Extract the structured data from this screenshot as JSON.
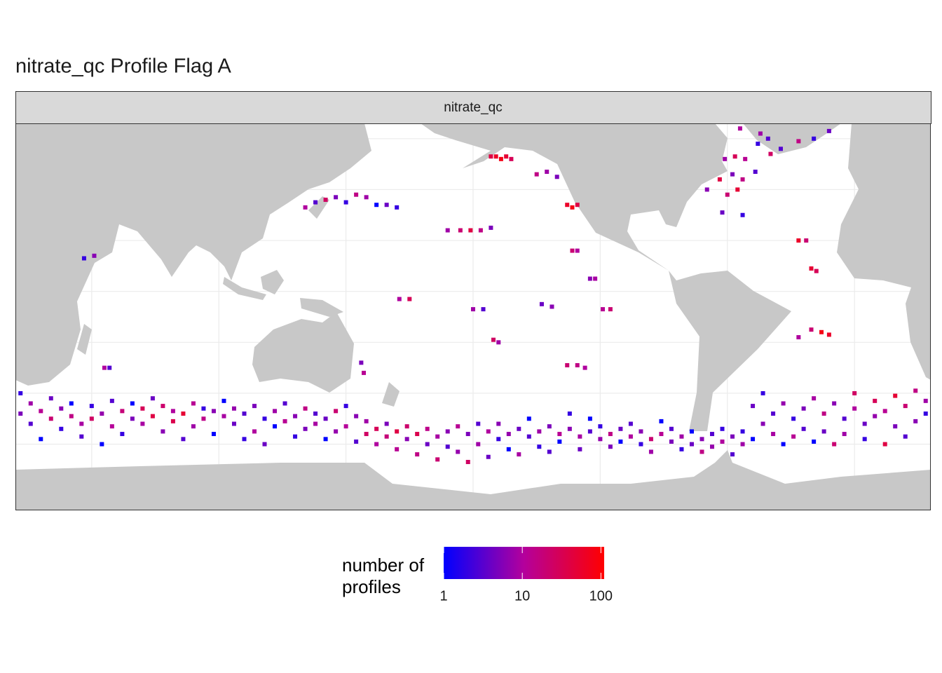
{
  "chart_data": {
    "type": "map",
    "title": "nitrate_qc Profile Flag A",
    "strip": "nitrate_qc",
    "legend_title": "number of profiles",
    "xlim": [
      20,
      380
    ],
    "ylim": [
      -86,
      66
    ],
    "xgrid": [
      50,
      100,
      150,
      200,
      250,
      300,
      350
    ],
    "ygrid": [
      -80,
      -60,
      -40,
      -20,
      0,
      20,
      40,
      60
    ],
    "colorlim": [
      1,
      110
    ],
    "log": true,
    "colorticks": [
      1,
      10,
      100
    ],
    "colors": [
      "#0000ff",
      "#b4009c",
      "#ff0000"
    ],
    "x": [
      22,
      22,
      26,
      26,
      30,
      30,
      34,
      34,
      38,
      38,
      42,
      42,
      46,
      46,
      50,
      50,
      54,
      54,
      58,
      58,
      62,
      62,
      66,
      66,
      70,
      70,
      74,
      74,
      78,
      78,
      82,
      82,
      86,
      86,
      90,
      90,
      94,
      94,
      98,
      98,
      102,
      102,
      106,
      106,
      110,
      110,
      114,
      114,
      118,
      118,
      122,
      122,
      126,
      126,
      130,
      130,
      134,
      134,
      138,
      138,
      142,
      142,
      146,
      146,
      150,
      150,
      154,
      154,
      158,
      158,
      162,
      162,
      166,
      166,
      170,
      170,
      174,
      174,
      178,
      178,
      182,
      182,
      186,
      186,
      190,
      190,
      194,
      194,
      198,
      198,
      202,
      202,
      206,
      206,
      210,
      210,
      214,
      214,
      218,
      218,
      222,
      222,
      226,
      226,
      230,
      230,
      234,
      234,
      238,
      238,
      242,
      242,
      246,
      246,
      250,
      250,
      254,
      254,
      258,
      258,
      262,
      262,
      266,
      266,
      270,
      270,
      274,
      274,
      278,
      278,
      282,
      282,
      286,
      286,
      290,
      290,
      294,
      294,
      298,
      298,
      302,
      302,
      306,
      306,
      310,
      310,
      314,
      314,
      318,
      318,
      322,
      322,
      326,
      326,
      330,
      330,
      334,
      334,
      338,
      338,
      342,
      342,
      346,
      346,
      350,
      350,
      354,
      354,
      358,
      358,
      362,
      362,
      366,
      366,
      370,
      370,
      374,
      374,
      378,
      378,
      207,
      209,
      211,
      213,
      215,
      225,
      229,
      233,
      237,
      239,
      241,
      134,
      138,
      142,
      146,
      150,
      154,
      158,
      162,
      166,
      170,
      190,
      195,
      199,
      203,
      207,
      239,
      241,
      246,
      248,
      171,
      175,
      208,
      210,
      237,
      241,
      244,
      227,
      231,
      251,
      254,
      200,
      204,
      312,
      299,
      303,
      307,
      297,
      302,
      306,
      311,
      292,
      300,
      304,
      298,
      306,
      317,
      321,
      328,
      334,
      313,
      333,
      335,
      328,
      331,
      316,
      305,
      340,
      47,
      51,
      337,
      340,
      333,
      328,
      55,
      57,
      156,
      157
    ],
    "y": [
      -40,
      -48,
      -44,
      -52,
      -47,
      -58,
      -42,
      -50,
      -46,
      -54,
      -49,
      -44,
      -52,
      -57,
      -45,
      -50,
      -48,
      -60,
      -43,
      -53,
      -47,
      -56,
      -50,
      -44,
      -46,
      -52,
      -49,
      -42,
      -45,
      -55,
      -51,
      -47,
      -48,
      -58,
      -44,
      -53,
      -50,
      -46,
      -47,
      -56,
      -49,
      -43,
      -52,
      -46,
      -48,
      -58,
      -45,
      -55,
      -50,
      -60,
      -47,
      -53,
      -44,
      -51,
      -49,
      -57,
      -46,
      -54,
      -52,
      -48,
      -50,
      -58,
      -47,
      -55,
      -53,
      -45,
      -49,
      -59,
      -56,
      -51,
      -54,
      -60,
      -57,
      -52,
      -55,
      -62,
      -53,
      -58,
      -56,
      -64,
      -54,
      -60,
      -57,
      -66,
      -55,
      -61,
      -53,
      -63,
      -56,
      -67,
      -52,
      -60,
      -55,
      -65,
      -58,
      -52,
      -56,
      -62,
      -54,
      -64,
      -57,
      -50,
      -55,
      -61,
      -53,
      -63,
      -56,
      -59,
      -54,
      -48,
      -57,
      -62,
      -55,
      -50,
      -58,
      -53,
      -56,
      -61,
      -54,
      -59,
      -57,
      -52,
      -55,
      -60,
      -58,
      -63,
      -56,
      -51,
      -59,
      -54,
      -57,
      -62,
      -60,
      -55,
      -58,
      -63,
      -56,
      -61,
      -59,
      -54,
      -57,
      -64,
      -55,
      -60,
      -58,
      -45,
      -52,
      -40,
      -48,
      -56,
      -44,
      -60,
      -50,
      -57,
      -46,
      -54,
      -42,
      -59,
      -48,
      -55,
      -44,
      -60,
      -50,
      -56,
      -46,
      -40,
      -52,
      -58,
      -43,
      -49,
      -47,
      -60,
      -41,
      -53,
      -45,
      -57,
      -39,
      -51,
      -43,
      -48,
      53,
      53,
      52,
      53,
      52,
      46,
      47,
      45,
      34,
      33,
      34,
      33,
      35,
      36,
      37,
      35,
      38,
      37,
      34,
      34,
      33,
      24,
      24,
      24,
      24,
      25,
      16,
      16,
      5,
      5,
      -3,
      -3,
      -19,
      -20,
      -29,
      -29,
      -30,
      -5,
      -6,
      -7,
      -7,
      -7,
      -7,
      58,
      52,
      53,
      52,
      44,
      46,
      44,
      47,
      40,
      38,
      40,
      31,
      30,
      54,
      56,
      59,
      60,
      62,
      9,
      8,
      20,
      20,
      60,
      64,
      63,
      13,
      14,
      -16,
      -17,
      -15,
      -18,
      -30,
      -30,
      -28,
      -32
    ],
    "values": [
      2,
      5,
      8,
      3,
      12,
      1,
      4,
      20,
      6,
      2,
      15,
      1,
      9,
      3,
      2,
      25,
      7,
      1,
      3,
      11,
      18,
      2,
      5,
      1,
      30,
      9,
      40,
      4,
      22,
      6,
      35,
      10,
      50,
      3,
      12,
      8,
      14,
      2,
      6,
      1,
      9,
      1,
      4,
      7,
      3,
      2,
      5,
      10,
      2,
      4,
      8,
      1,
      3,
      12,
      6,
      2,
      15,
      5,
      9,
      3,
      4,
      1,
      20,
      7,
      11,
      2,
      6,
      3,
      25,
      8,
      30,
      10,
      18,
      5,
      40,
      12,
      22,
      6,
      35,
      15,
      14,
      4,
      9,
      20,
      6,
      3,
      12,
      7,
      5,
      25,
      3,
      8,
      10,
      4,
      2,
      6,
      7,
      1,
      4,
      9,
      3,
      1,
      8,
      2,
      5,
      3,
      12,
      1,
      6,
      2,
      9,
      4,
      3,
      1,
      7,
      2,
      15,
      5,
      4,
      1,
      10,
      3,
      6,
      2,
      20,
      8,
      12,
      1,
      5,
      3,
      8,
      2,
      4,
      1,
      6,
      15,
      3,
      7,
      10,
      2,
      5,
      3,
      2,
      8,
      1,
      4,
      6,
      2,
      3,
      9,
      7,
      1,
      2,
      12,
      5,
      3,
      9,
      1,
      15,
      4,
      6,
      20,
      3,
      8,
      10,
      25,
      4,
      2,
      30,
      7,
      12,
      40,
      50,
      5,
      20,
      3,
      15,
      6,
      8,
      2,
      40,
      60,
      80,
      50,
      30,
      15,
      8,
      5,
      60,
      80,
      40,
      10,
      3,
      25,
      5,
      2,
      15,
      8,
      1,
      4,
      2,
      8,
      20,
      40,
      15,
      5,
      20,
      10,
      6,
      9,
      10,
      30,
      25,
      8,
      20,
      15,
      10,
      4,
      6,
      12,
      20,
      8,
      3,
      2,
      8,
      30,
      12,
      40,
      5,
      15,
      3,
      6,
      20,
      50,
      4,
      2,
      25,
      3,
      15,
      2,
      8,
      50,
      30,
      60,
      20,
      3,
      10,
      4,
      2,
      6,
      80,
      60,
      20,
      10,
      10,
      3,
      5,
      12
    ]
  }
}
